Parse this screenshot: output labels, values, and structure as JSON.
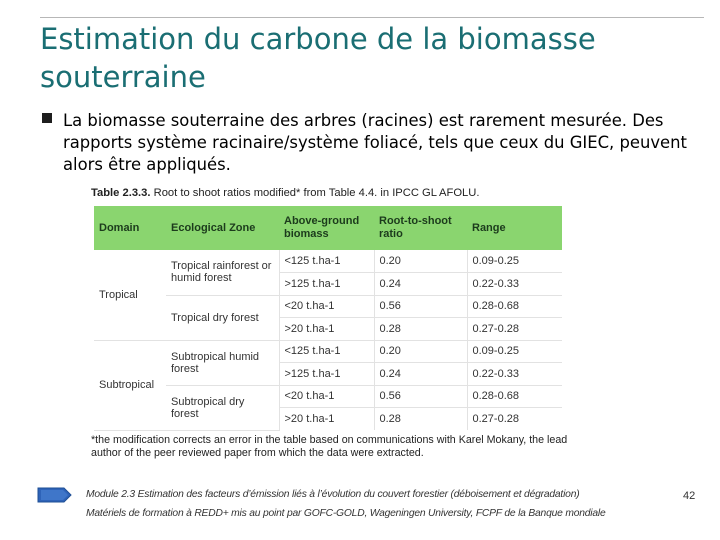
{
  "title": "Estimation du carbone de la biomasse souterraine",
  "bullet": "La biomasse souterraine des arbres (racines) est rarement mesurée. Des rapports système racinaire/système foliacé, tels que ceux du GIEC, peuvent alors être appliqués.",
  "table": {
    "caption_label": "Table 2.3.3.",
    "caption_text": " Root to shoot ratios modified* from Table 4.4. in IPCC GL AFOLU.",
    "headers": [
      "Domain",
      "Ecological Zone",
      "Above-ground biomass",
      "Root-to-shoot ratio",
      "Range"
    ],
    "rows": [
      {
        "domain": "Tropical",
        "zone": "Tropical rainforest or humid forest",
        "biomass": "<125 t.ha-1",
        "ratio": "0.20",
        "range": "0.09-0.25"
      },
      {
        "domain": "",
        "zone": "",
        "biomass": ">125 t.ha-1",
        "ratio": "0.24",
        "range": "0.22-0.33"
      },
      {
        "domain": "",
        "zone": "Tropical dry forest",
        "biomass": "<20 t.ha-1",
        "ratio": "0.56",
        "range": "0.28-0.68"
      },
      {
        "domain": "",
        "zone": "",
        "biomass": ">20 t.ha-1",
        "ratio": "0.28",
        "range": "0.27-0.28"
      },
      {
        "domain": "Subtropical",
        "zone": "Subtropical humid forest",
        "biomass": "<125 t.ha-1",
        "ratio": "0.20",
        "range": "0.09-0.25"
      },
      {
        "domain": "",
        "zone": "",
        "biomass": ">125 t.ha-1",
        "ratio": "0.24",
        "range": "0.22-0.33"
      },
      {
        "domain": "",
        "zone": "Subtropical dry forest",
        "biomass": "<20 t.ha-1",
        "ratio": "0.56",
        "range": "0.28-0.68"
      },
      {
        "domain": "",
        "zone": "",
        "biomass": ">20 t.ha-1",
        "ratio": "0.28",
        "range": "0.27-0.28"
      }
    ],
    "footnote": "*the modification corrects an error in the table based on communications with Karel Mokany, the lead author of the peer reviewed paper from which the data were extracted."
  },
  "footer": {
    "line1": "Module 2.3 Estimation des facteurs d’émission liés à l’évolution du couvert forestier (déboisement et dégradation)",
    "page_number": "42",
    "line2": "Matériels de formation à REDD+ mis au point par GOFC-GOLD, Wageningen University, FCPF de la Banque mondiale"
  },
  "colors": {
    "title": "#1a6e73",
    "table_header": "#8ad56f",
    "arrow": "#2e63b8"
  }
}
